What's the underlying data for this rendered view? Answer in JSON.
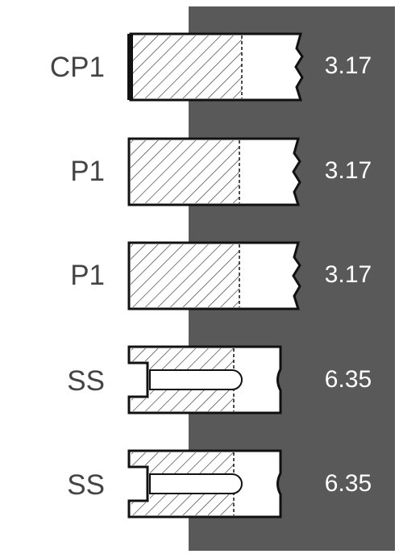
{
  "colors": {
    "panel": "#595959",
    "label_text": "#444444",
    "value_text": "#ffffff",
    "outline": "#111111",
    "hatch": "#333333"
  },
  "rows": [
    {
      "label": "CP1",
      "value": "3.17",
      "shape": "piston-cap"
    },
    {
      "label": "P1",
      "value": "3.17",
      "shape": "piston"
    },
    {
      "label": "P1",
      "value": "3.17",
      "shape": "piston"
    },
    {
      "label": "SS",
      "value": "6.35",
      "shape": "slotted-piston"
    },
    {
      "label": "SS",
      "value": "6.35",
      "shape": "slotted-piston"
    }
  ]
}
